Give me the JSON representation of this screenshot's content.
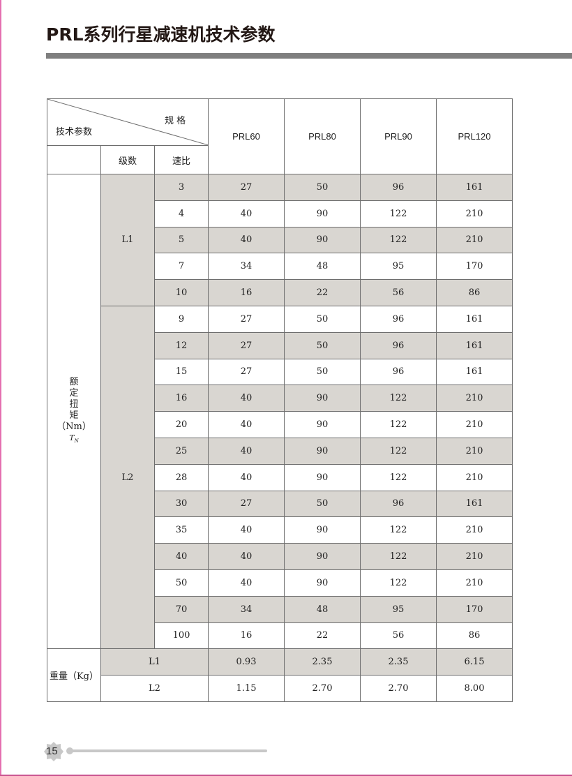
{
  "title": "PRL系列行星减速机技术参数",
  "table": {
    "corner_top": "规 格",
    "corner_bottom": "技术参数",
    "stage_header": "级数",
    "ratio_header": "速比",
    "models": [
      "PRL60",
      "PRL80",
      "PRL90",
      "PRL120"
    ],
    "torque_label": [
      "额",
      "定",
      "扭",
      "矩",
      "（Nm）"
    ],
    "torque_symbol": "T",
    "torque_symbol_sub": "N",
    "groups": [
      {
        "stage": "L1",
        "rows": [
          {
            "ratio": "3",
            "values": [
              "27",
              "50",
              "96",
              "161"
            ]
          },
          {
            "ratio": "4",
            "values": [
              "40",
              "90",
              "122",
              "210"
            ]
          },
          {
            "ratio": "5",
            "values": [
              "40",
              "90",
              "122",
              "210"
            ]
          },
          {
            "ratio": "7",
            "values": [
              "34",
              "48",
              "95",
              "170"
            ]
          },
          {
            "ratio": "10",
            "values": [
              "16",
              "22",
              "56",
              "86"
            ]
          }
        ]
      },
      {
        "stage": "L2",
        "rows": [
          {
            "ratio": "9",
            "values": [
              "27",
              "50",
              "96",
              "161"
            ]
          },
          {
            "ratio": "12",
            "values": [
              "27",
              "50",
              "96",
              "161"
            ]
          },
          {
            "ratio": "15",
            "values": [
              "27",
              "50",
              "96",
              "161"
            ]
          },
          {
            "ratio": "16",
            "values": [
              "40",
              "90",
              "122",
              "210"
            ]
          },
          {
            "ratio": "20",
            "values": [
              "40",
              "90",
              "122",
              "210"
            ]
          },
          {
            "ratio": "25",
            "values": [
              "40",
              "90",
              "122",
              "210"
            ]
          },
          {
            "ratio": "28",
            "values": [
              "40",
              "90",
              "122",
              "210"
            ]
          },
          {
            "ratio": "30",
            "values": [
              "27",
              "50",
              "96",
              "161"
            ]
          },
          {
            "ratio": "35",
            "values": [
              "40",
              "90",
              "122",
              "210"
            ]
          },
          {
            "ratio": "40",
            "values": [
              "40",
              "90",
              "122",
              "210"
            ]
          },
          {
            "ratio": "50",
            "values": [
              "40",
              "90",
              "122",
              "210"
            ]
          },
          {
            "ratio": "70",
            "values": [
              "34",
              "48",
              "95",
              "170"
            ]
          },
          {
            "ratio": "100",
            "values": [
              "16",
              "22",
              "56",
              "86"
            ]
          }
        ]
      }
    ],
    "weight_label": "重量（Kg）",
    "weights": [
      {
        "stage": "L1",
        "values": [
          "0.93",
          "2.35",
          "2.35",
          "6.15"
        ]
      },
      {
        "stage": "L2",
        "values": [
          "1.15",
          "2.70",
          "2.70",
          "8.00"
        ]
      }
    ],
    "shade_color": "#d9d6d1"
  },
  "footer": {
    "page_number": "15"
  }
}
